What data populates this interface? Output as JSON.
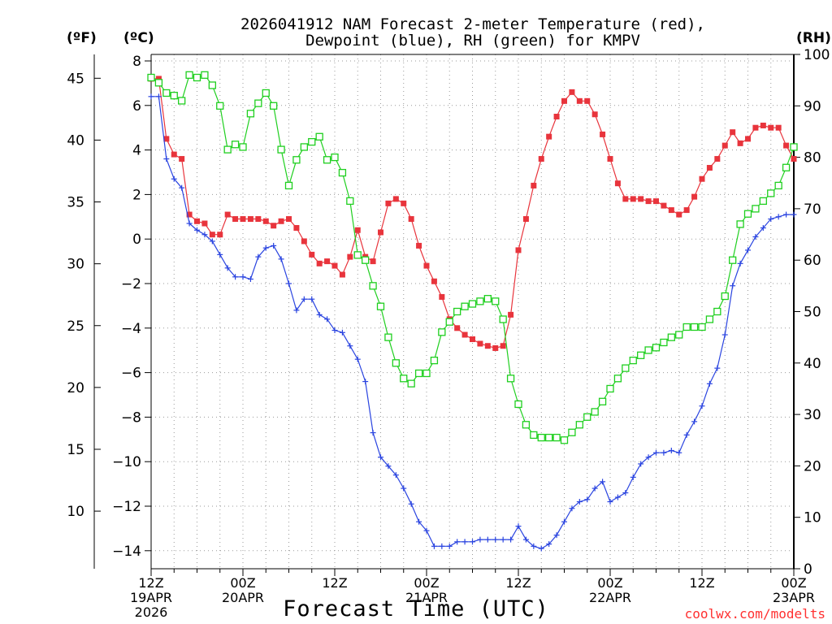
{
  "chart_data": {
    "type": "line",
    "title_line1": "2026041912 NAM Forecast 2-meter Temperature (red),",
    "title_line2": "Dewpoint (blue), RH (green) for KMPV",
    "xlabel": "Forecast Time (UTC)",
    "unit_f": "(ºF)",
    "unit_c": "(ºC)",
    "unit_rh": "(RH)",
    "credit": "coolwx.com/modelts",
    "xlim": [
      0,
      84
    ],
    "ylim_c": [
      -15,
      8
    ],
    "ylim_rh": [
      0,
      100
    ],
    "grid": true,
    "x_ticks": [
      {
        "x": 0,
        "l1": "12Z",
        "l2": "19APR",
        "l3": "2026"
      },
      {
        "x": 12,
        "l1": "00Z",
        "l2": "20APR",
        "l3": ""
      },
      {
        "x": 24,
        "l1": "12Z",
        "l2": "",
        "l3": ""
      },
      {
        "x": 36,
        "l1": "00Z",
        "l2": "21APR",
        "l3": ""
      },
      {
        "x": 48,
        "l1": "12Z",
        "l2": "",
        "l3": ""
      },
      {
        "x": 60,
        "l1": "00Z",
        "l2": "22APR",
        "l3": ""
      },
      {
        "x": 72,
        "l1": "12Z",
        "l2": "",
        "l3": ""
      },
      {
        "x": 84,
        "l1": "00Z",
        "l2": "23APR",
        "l3": ""
      }
    ],
    "y_ticks_c": [
      8,
      6,
      4,
      2,
      0,
      -2,
      -4,
      -6,
      -8,
      -10,
      -12,
      -14
    ],
    "y_ticks_f": [
      45,
      40,
      35,
      30,
      25,
      20,
      15,
      10
    ],
    "y_ticks_rh": [
      100,
      90,
      80,
      70,
      60,
      50,
      40,
      30,
      20,
      10,
      0
    ],
    "series": [
      {
        "name": "Temperature",
        "color": "#e8343c",
        "marker": "square-filled",
        "x": [
          0,
          1,
          2,
          3,
          4,
          5,
          6,
          7,
          8,
          9,
          10,
          11,
          12,
          13,
          14,
          15,
          16,
          17,
          18,
          19,
          20,
          21,
          22,
          23,
          24,
          25,
          26,
          27,
          28,
          29,
          30,
          31,
          32,
          33,
          34,
          35,
          36,
          37,
          38,
          39,
          40,
          41,
          42,
          43,
          44,
          45,
          46,
          47,
          48,
          49,
          50,
          51,
          52,
          53,
          54,
          55,
          56,
          57,
          58,
          59,
          60,
          61,
          62,
          63,
          64,
          65,
          66,
          67,
          68,
          69,
          70,
          71,
          72,
          73,
          74,
          75,
          76,
          77,
          78,
          79,
          80,
          81,
          82,
          83,
          84
        ],
        "values": [
          7.2,
          7.2,
          4.5,
          3.8,
          3.6,
          1.1,
          0.8,
          0.7,
          0.2,
          0.2,
          1.1,
          0.9,
          0.9,
          0.9,
          0.9,
          0.8,
          0.6,
          0.8,
          0.9,
          0.5,
          -0.1,
          -0.7,
          -1.1,
          -1.0,
          -1.2,
          -1.6,
          -0.8,
          0.4,
          -0.8,
          -1.0,
          0.3,
          1.6,
          1.8,
          1.6,
          0.9,
          -0.3,
          -1.2,
          -1.9,
          -2.6,
          -3.6,
          -4.0,
          -4.3,
          -4.5,
          -4.7,
          -4.8,
          -4.9,
          -4.8,
          -3.4,
          -0.5,
          0.9,
          2.4,
          3.6,
          4.6,
          5.5,
          6.2,
          6.6,
          6.2,
          6.2,
          5.6,
          4.7,
          3.6,
          2.5,
          1.8,
          1.8,
          1.8,
          1.7,
          1.7,
          1.5,
          1.3,
          1.1,
          1.3,
          1.9,
          2.7,
          3.2,
          3.6,
          4.2,
          4.8,
          4.3,
          4.5,
          5.0,
          5.1,
          5.0,
          5.0,
          4.2,
          3.6
        ]
      },
      {
        "name": "Dewpoint",
        "color": "#2a44e0",
        "marker": "plus",
        "x": [
          0,
          1,
          2,
          3,
          4,
          5,
          6,
          7,
          8,
          9,
          10,
          11,
          12,
          13,
          14,
          15,
          16,
          17,
          18,
          19,
          20,
          21,
          22,
          23,
          24,
          25,
          26,
          27,
          28,
          29,
          30,
          31,
          32,
          33,
          34,
          35,
          36,
          37,
          38,
          39,
          40,
          41,
          42,
          43,
          44,
          45,
          46,
          47,
          48,
          49,
          50,
          51,
          52,
          53,
          54,
          55,
          56,
          57,
          58,
          59,
          60,
          61,
          62,
          63,
          64,
          65,
          66,
          67,
          68,
          69,
          70,
          71,
          72,
          73,
          74,
          75,
          76,
          77,
          78,
          79,
          80,
          81,
          82,
          83,
          84
        ],
        "values": [
          6.4,
          6.4,
          3.6,
          2.7,
          2.3,
          0.7,
          0.4,
          0.2,
          -0.1,
          -0.7,
          -1.3,
          -1.7,
          -1.7,
          -1.8,
          -0.8,
          -0.4,
          -0.3,
          -0.9,
          -2.0,
          -3.2,
          -2.7,
          -2.7,
          -3.4,
          -3.6,
          -4.1,
          -4.2,
          -4.8,
          -5.4,
          -6.4,
          -8.7,
          -9.8,
          -10.2,
          -10.6,
          -11.2,
          -11.9,
          -12.7,
          -13.1,
          -13.8,
          -13.8,
          -13.8,
          -13.6,
          -13.6,
          -13.6,
          -13.5,
          -13.5,
          -13.5,
          -13.5,
          -13.5,
          -12.9,
          -13.5,
          -13.8,
          -13.9,
          -13.7,
          -13.3,
          -12.7,
          -12.1,
          -11.8,
          -11.7,
          -11.2,
          -10.9,
          -11.8,
          -11.6,
          -11.4,
          -10.7,
          -10.1,
          -9.8,
          -9.6,
          -9.6,
          -9.5,
          -9.6,
          -8.8,
          -8.2,
          -7.5,
          -6.5,
          -5.8,
          -4.3,
          -2.1,
          -1.1,
          -0.5,
          0.1,
          0.5,
          0.9,
          1.0,
          1.1,
          1.1
        ]
      },
      {
        "name": "RH",
        "color": "#1fcf1f",
        "marker": "square-open",
        "x": [
          0,
          1,
          2,
          3,
          4,
          5,
          6,
          7,
          8,
          9,
          10,
          11,
          12,
          13,
          14,
          15,
          16,
          17,
          18,
          19,
          20,
          21,
          22,
          23,
          24,
          25,
          26,
          27,
          28,
          29,
          30,
          31,
          32,
          33,
          34,
          35,
          36,
          37,
          38,
          39,
          40,
          41,
          42,
          43,
          44,
          45,
          46,
          47,
          48,
          49,
          50,
          51,
          52,
          53,
          54,
          55,
          56,
          57,
          58,
          59,
          60,
          61,
          62,
          63,
          64,
          65,
          66,
          67,
          68,
          69,
          70,
          71,
          72,
          73,
          74,
          75,
          76,
          77,
          78,
          79,
          80,
          81,
          82,
          83,
          84
        ],
        "values": [
          95.5,
          94.5,
          92.5,
          92,
          91,
          96,
          95.5,
          96,
          94,
          90,
          81.5,
          82.5,
          82,
          88.5,
          90.5,
          92.5,
          90,
          81.5,
          74.5,
          79.5,
          82,
          83,
          84,
          79.5,
          80,
          77,
          71.5,
          61,
          60,
          55,
          51,
          45,
          40,
          37,
          36,
          38,
          38,
          40.5,
          46,
          48,
          50,
          51,
          51.5,
          52,
          52.5,
          52,
          48.5,
          37,
          32,
          28,
          26,
          25.5,
          25.5,
          25.5,
          25,
          26.5,
          28,
          29.5,
          30.5,
          32.5,
          35,
          37,
          39,
          40.5,
          41.5,
          42.5,
          43,
          44,
          45,
          45.5,
          47,
          47,
          47,
          48.5,
          50,
          53,
          60,
          67,
          69,
          70,
          71.5,
          73,
          74.5,
          78,
          82
        ]
      }
    ]
  }
}
